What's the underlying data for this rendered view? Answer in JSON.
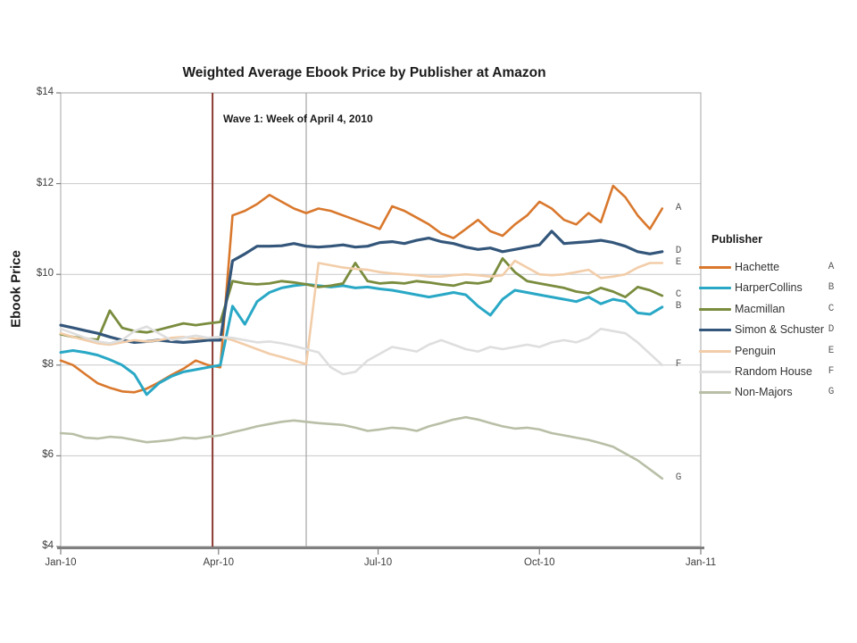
{
  "chart_data": {
    "type": "line",
    "title": "Weighted Average Ebook Price by Publisher at Amazon",
    "ylabel": "Ebook Price",
    "legend_title": "Publisher",
    "annotation": {
      "label": "Wave 1: Week of April 4, 2010"
    },
    "x_unit": "weekly points, Jan 2010 - mid Dec 2010",
    "x_tick_labels": [
      "Jan-10",
      "Apr-10",
      "Jul-10",
      "Oct-10",
      "Jan-11"
    ],
    "x_tick_days": [
      0,
      90,
      181,
      273,
      365
    ],
    "y_tick_labels": [
      "$4",
      "$6",
      "$8",
      "$10",
      "$12",
      "$14"
    ],
    "y_ticks": [
      4,
      6,
      8,
      10,
      12,
      14
    ],
    "ylim": [
      4,
      14
    ],
    "grid_y_values": [
      6,
      8,
      10,
      12
    ],
    "legend_position": "right",
    "vlines": [
      {
        "name": "wave1-line",
        "x_week": 12.37,
        "color": "#8C3B32",
        "width": 2
      },
      {
        "name": "secondary-line",
        "x_week": 20.0,
        "color": "#ABABAB",
        "width": 1.3
      }
    ],
    "series": [
      {
        "name": "Hachette",
        "letter": "A",
        "color": "#D9782D",
        "stroke_width": 2.6,
        "values": [
          8.1,
          8.0,
          7.8,
          7.6,
          7.5,
          7.42,
          7.4,
          7.48,
          7.62,
          7.78,
          7.92,
          8.1,
          8.0,
          7.95,
          11.3,
          11.4,
          11.55,
          11.75,
          11.6,
          11.45,
          11.35,
          11.45,
          11.4,
          11.3,
          11.2,
          11.1,
          11.0,
          11.5,
          11.4,
          11.25,
          11.1,
          10.9,
          10.8,
          11.0,
          11.2,
          10.95,
          10.85,
          11.1,
          11.3,
          11.6,
          11.45,
          11.2,
          11.1,
          11.35,
          11.15,
          11.95,
          11.7,
          11.3,
          11.0,
          11.45
        ]
      },
      {
        "name": "HarperCollins",
        "letter": "B",
        "color": "#29A8C6",
        "stroke_width": 3.0,
        "values": [
          8.28,
          8.32,
          8.28,
          8.22,
          8.12,
          8.0,
          7.8,
          7.35,
          7.6,
          7.75,
          7.85,
          7.9,
          7.95,
          8.0,
          9.3,
          8.9,
          9.4,
          9.6,
          9.7,
          9.75,
          9.78,
          9.75,
          9.72,
          9.75,
          9.7,
          9.72,
          9.68,
          9.65,
          9.6,
          9.55,
          9.5,
          9.55,
          9.6,
          9.55,
          9.3,
          9.1,
          9.45,
          9.65,
          9.6,
          9.55,
          9.5,
          9.45,
          9.4,
          9.5,
          9.35,
          9.45,
          9.4,
          9.15,
          9.12,
          9.28
        ]
      },
      {
        "name": "Macmillan",
        "letter": "C",
        "color": "#7A8C3E",
        "stroke_width": 2.8,
        "values": [
          8.68,
          8.62,
          8.58,
          8.56,
          9.2,
          8.82,
          8.75,
          8.72,
          8.78,
          8.85,
          8.92,
          8.88,
          8.92,
          8.95,
          9.85,
          9.8,
          9.78,
          9.8,
          9.85,
          9.82,
          9.78,
          9.72,
          9.75,
          9.8,
          10.25,
          9.85,
          9.8,
          9.82,
          9.8,
          9.85,
          9.82,
          9.78,
          9.75,
          9.82,
          9.8,
          9.85,
          10.35,
          10.05,
          9.85,
          9.8,
          9.75,
          9.7,
          9.62,
          9.58,
          9.7,
          9.62,
          9.5,
          9.72,
          9.65,
          9.53
        ]
      },
      {
        "name": "Simon & Schuster",
        "letter": "D",
        "color": "#33567A",
        "stroke_width": 3.2,
        "values": [
          8.88,
          8.82,
          8.76,
          8.7,
          8.62,
          8.55,
          8.5,
          8.52,
          8.55,
          8.52,
          8.5,
          8.52,
          8.55,
          8.55,
          10.3,
          10.45,
          10.62,
          10.62,
          10.63,
          10.68,
          10.62,
          10.6,
          10.62,
          10.65,
          10.6,
          10.62,
          10.7,
          10.72,
          10.68,
          10.75,
          10.8,
          10.72,
          10.68,
          10.6,
          10.55,
          10.58,
          10.5,
          10.55,
          10.6,
          10.65,
          10.95,
          10.68,
          10.7,
          10.72,
          10.75,
          10.7,
          10.62,
          10.5,
          10.45,
          10.5
        ]
      },
      {
        "name": "Penguin",
        "letter": "E",
        "color": "#F2CDA9",
        "stroke_width": 2.6,
        "values": [
          8.7,
          8.62,
          8.55,
          8.48,
          8.45,
          8.5,
          8.55,
          8.52,
          8.55,
          8.6,
          8.62,
          8.58,
          8.6,
          8.62,
          8.55,
          8.45,
          8.35,
          8.25,
          8.18,
          8.1,
          8.02,
          10.25,
          10.2,
          10.15,
          10.12,
          10.1,
          10.05,
          10.02,
          10.0,
          9.98,
          9.95,
          9.95,
          9.98,
          10.0,
          9.98,
          9.95,
          9.98,
          10.3,
          10.15,
          10.0,
          9.98,
          10.0,
          10.05,
          10.1,
          9.92,
          9.95,
          10.0,
          10.15,
          10.25,
          10.25
        ]
      },
      {
        "name": "Random House",
        "letter": "F",
        "color": "#DEDEDE",
        "stroke_width": 2.6,
        "values": [
          8.8,
          8.7,
          8.6,
          8.52,
          8.48,
          8.55,
          8.75,
          8.85,
          8.7,
          8.55,
          8.6,
          8.65,
          8.6,
          8.62,
          8.6,
          8.55,
          8.5,
          8.52,
          8.48,
          8.42,
          8.35,
          8.28,
          7.95,
          7.8,
          7.85,
          8.1,
          8.25,
          8.4,
          8.35,
          8.3,
          8.45,
          8.55,
          8.45,
          8.35,
          8.3,
          8.4,
          8.35,
          8.4,
          8.45,
          8.4,
          8.5,
          8.55,
          8.5,
          8.6,
          8.8,
          8.75,
          8.7,
          8.5,
          8.25,
          8.0
        ]
      },
      {
        "name": "Non-Majors",
        "letter": "G",
        "color": "#B8BFA6",
        "stroke_width": 2.6,
        "values": [
          6.5,
          6.48,
          6.4,
          6.38,
          6.42,
          6.4,
          6.35,
          6.3,
          6.32,
          6.35,
          6.4,
          6.38,
          6.42,
          6.45,
          6.52,
          6.58,
          6.65,
          6.7,
          6.75,
          6.78,
          6.75,
          6.72,
          6.7,
          6.68,
          6.62,
          6.55,
          6.58,
          6.62,
          6.6,
          6.55,
          6.65,
          6.72,
          6.8,
          6.85,
          6.8,
          6.72,
          6.65,
          6.6,
          6.62,
          6.58,
          6.5,
          6.45,
          6.4,
          6.35,
          6.28,
          6.2,
          6.05,
          5.9,
          5.7,
          5.5
        ]
      }
    ],
    "colors": {
      "gridline": "#C9C9C9",
      "plot_border": "#B3B3B3",
      "axis_line": "#7F7F7F",
      "tick": "#7F7F7F"
    }
  }
}
